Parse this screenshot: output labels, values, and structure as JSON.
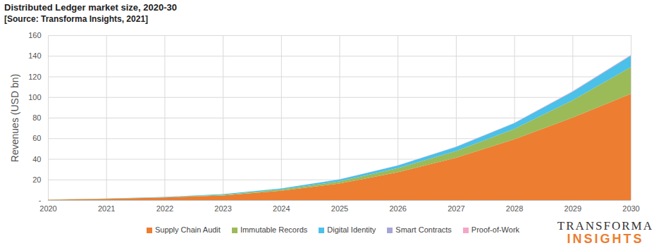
{
  "chart_data": {
    "type": "area",
    "title": "Distributed Ledger market size, 2020-30",
    "subtitle": "[Source: Transforma Insights, 2021]",
    "y_label": "Revenues (USD bn)",
    "x": [
      2020,
      2021,
      2022,
      2023,
      2024,
      2025,
      2026,
      2027,
      2028,
      2029,
      2030
    ],
    "xlim": [
      2020,
      2030
    ],
    "xticks": [
      2020,
      2021,
      2022,
      2023,
      2024,
      2025,
      2026,
      2027,
      2028,
      2029,
      2030
    ],
    "ylim": [
      0,
      160
    ],
    "yticks": [
      {
        "value": 0,
        "label": "-"
      },
      20,
      40,
      60,
      80,
      100,
      120,
      140,
      160
    ],
    "stacked": true,
    "grid": true,
    "legend": "bottom",
    "annotations": [
      "TRANSFORMA",
      "INSIGHTS"
    ],
    "series": [
      {
        "name": "Supply Chain Audit",
        "color": "#ED7D31",
        "values": [
          0.4,
          1.2,
          2.5,
          4.5,
          9,
          16,
          27,
          41,
          59,
          80,
          103
        ]
      },
      {
        "name": "Immutable Records",
        "color": "#9BBB59",
        "values": [
          0.05,
          0.15,
          0.3,
          0.6,
          1.2,
          2.2,
          4,
          6.5,
          10,
          17,
          26
        ]
      },
      {
        "name": "Digital Identity",
        "color": "#4BC0E8",
        "values": [
          0.05,
          0.15,
          0.3,
          0.7,
          1,
          1.8,
          2.5,
          4,
          5.5,
          8,
          11
        ]
      },
      {
        "name": "Smart Contracts",
        "color": "#A5A5D6",
        "values": [
          0.01,
          0.02,
          0.04,
          0.06,
          0.1,
          0.15,
          0.2,
          0.3,
          0.4,
          0.5,
          0.6
        ]
      },
      {
        "name": "Proof-of-Work",
        "color": "#F4A6C8",
        "values": [
          0.01,
          0.01,
          0.01,
          0.02,
          0.02,
          0.03,
          0.03,
          0.04,
          0.05,
          0.06,
          0.07
        ]
      }
    ]
  }
}
